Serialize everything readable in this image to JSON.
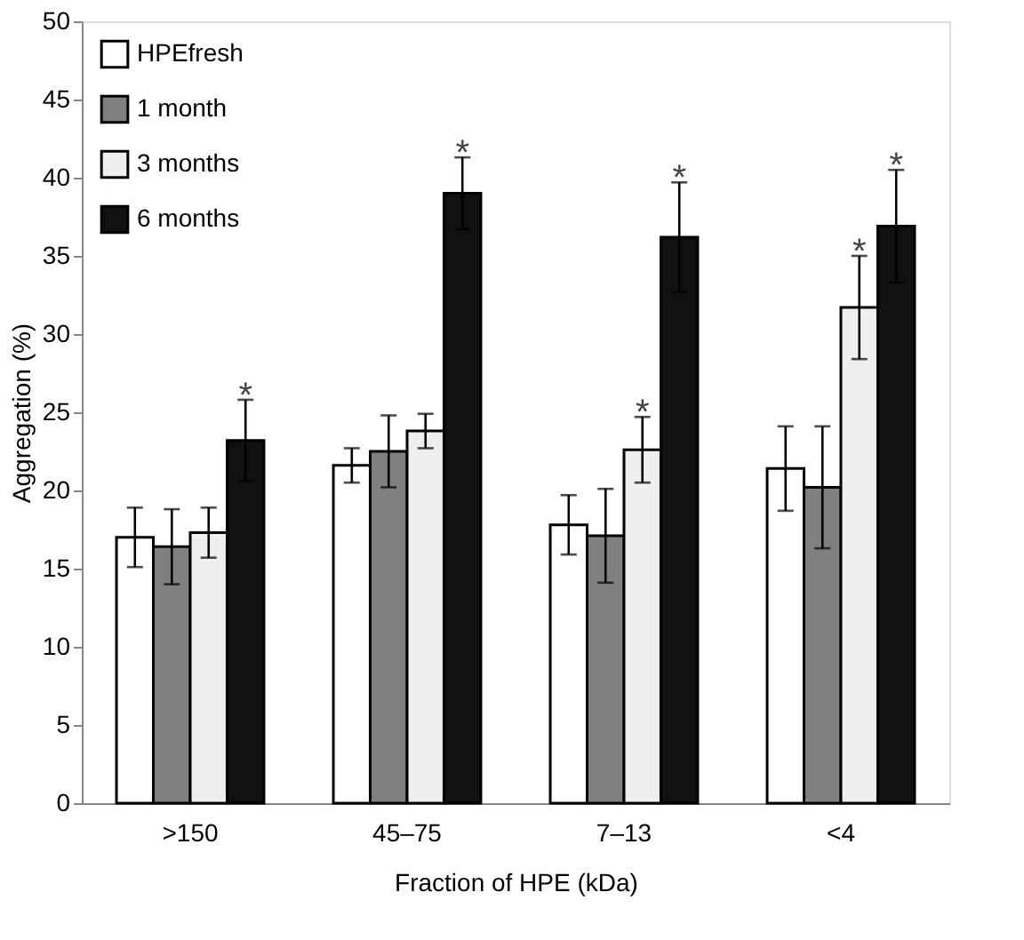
{
  "chart_data": {
    "type": "bar",
    "xlabel": "Fraction of HPE (kDa)",
    "ylabel": "Aggregation (%)",
    "categories": [
      ">150",
      "45–75",
      "7–13",
      "<4"
    ],
    "series": [
      {
        "name": "HPEfresh",
        "color": "#ffffff",
        "values": [
          17.0,
          21.6,
          17.8,
          21.4
        ],
        "errors": [
          1.9,
          1.1,
          1.9,
          2.7
        ]
      },
      {
        "name": "1 month",
        "color": "#808080",
        "values": [
          16.4,
          22.5,
          17.1,
          20.2
        ],
        "errors": [
          2.4,
          2.3,
          3.0,
          3.9
        ]
      },
      {
        "name": "3 months",
        "color": "#efefef",
        "values": [
          17.3,
          23.8,
          22.6,
          31.7
        ],
        "errors": [
          1.6,
          1.1,
          2.1,
          3.3
        ]
      },
      {
        "name": "6 months",
        "color": "#111111",
        "values": [
          23.2,
          39.0,
          36.2,
          36.9
        ],
        "errors": [
          2.6,
          2.3,
          3.5,
          3.6
        ]
      }
    ],
    "annotations": [
      "*",
      "*",
      "*",
      "*",
      "*",
      "*"
    ],
    "ylim": [
      0,
      50
    ],
    "yticks": [
      0,
      5,
      10,
      15,
      20,
      25,
      30,
      35,
      40,
      45,
      50
    ],
    "grid": false,
    "legend": "top left"
  }
}
